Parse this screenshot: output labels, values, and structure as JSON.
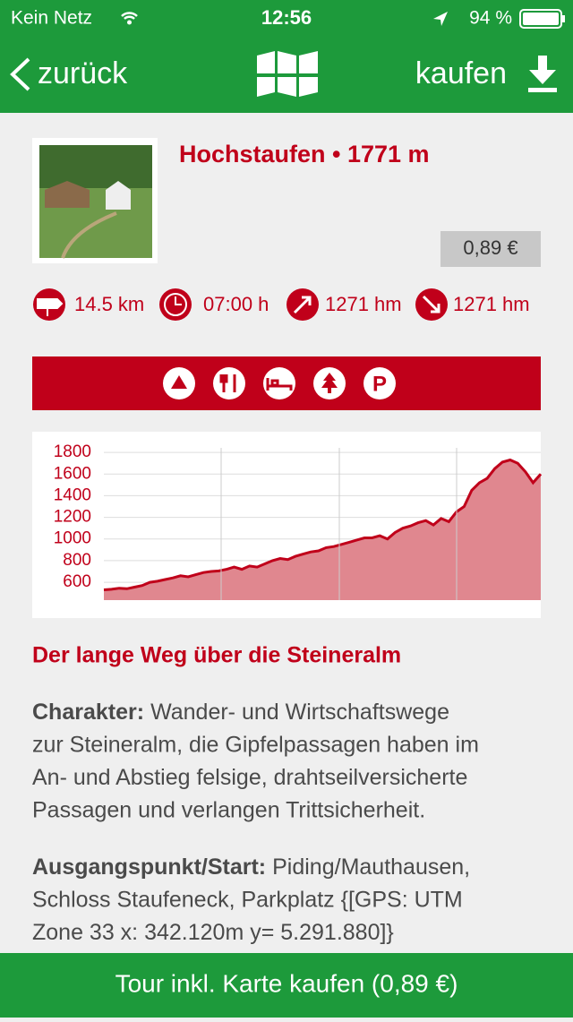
{
  "status_bar": {
    "carrier": "Kein Netz",
    "time": "12:56",
    "battery": "94 %"
  },
  "nav": {
    "back": "zurück",
    "buy": "kaufen"
  },
  "tour": {
    "title": "Hochstaufen • 1771 m",
    "price": "0,89 €",
    "stats": [
      "14.5 km",
      "07:00 h",
      "1271 hm",
      "1271 hm"
    ]
  },
  "chart_data": {
    "type": "area",
    "values": [
      530,
      535,
      545,
      540,
      555,
      570,
      600,
      610,
      625,
      640,
      660,
      650,
      670,
      690,
      700,
      705,
      720,
      740,
      720,
      750,
      740,
      770,
      800,
      820,
      810,
      840,
      860,
      880,
      890,
      920,
      930,
      950,
      970,
      990,
      1010,
      1010,
      1030,
      1000,
      1060,
      1100,
      1120,
      1150,
      1170,
      1130,
      1190,
      1160,
      1250,
      1300,
      1450,
      1520,
      1560,
      1650,
      1710,
      1730,
      1700,
      1620,
      1520,
      1600
    ],
    "ylim": [
      435,
      1842
    ],
    "yticks": [
      600,
      800,
      1000,
      1200,
      1400,
      1600,
      1800
    ],
    "grid": true,
    "color": "#c0001a",
    "fill_color": "#e0878f"
  },
  "section": {
    "heading": "Der lange Weg über die Steineralm",
    "paragraphs": [
      {
        "label": "Charakter:",
        "lines": [
          "Wander- und Wirtschaftswege",
          "zur Steineralm, die Gipfelpassagen haben im",
          "An- und Abstieg felsige, drahtseilversicherte",
          "Passagen und verlangen Trittsicherheit."
        ]
      },
      {
        "label": "Ausgangspunkt/Start:",
        "lines": [
          "Piding/Mauthausen,",
          "Schloss Staufeneck, Parkplatz {[GPS: UTM",
          "Zone 33 x: 342.120m y= 5.291.880]}"
        ]
      }
    ]
  },
  "footer": {
    "button": "Tour inkl. Karte kaufen (0,89 €)"
  }
}
